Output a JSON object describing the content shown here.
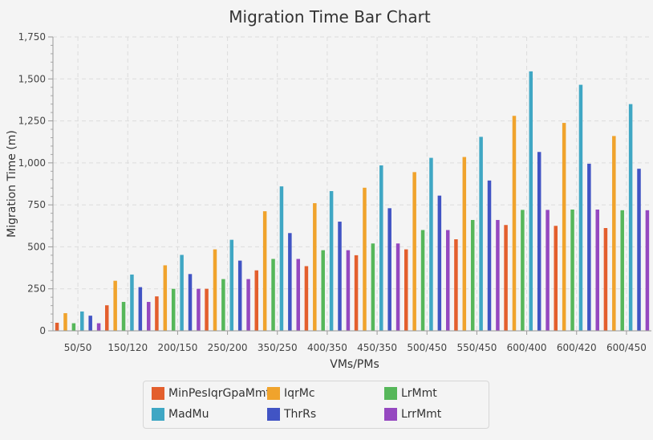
{
  "chart_data": {
    "type": "bar",
    "title": "Migration Time Bar Chart",
    "xlabel": "VMs/PMs",
    "ylabel": "Migration Time (m)",
    "ylim": [
      0,
      1750
    ],
    "yticks": [
      0,
      250,
      500,
      750,
      1000,
      1250,
      1500,
      1750
    ],
    "ytick_labels": [
      "0",
      "250",
      "500",
      "750",
      "1,000",
      "1,250",
      "1,500",
      "1,750"
    ],
    "grid": true,
    "legend_position": "bottom",
    "categories": [
      "50/50",
      "150/120",
      "200/150",
      "250/200",
      "350/250",
      "400/350",
      "450/350",
      "500/450",
      "550/450",
      "600/400",
      "600/420",
      "600/450"
    ],
    "series": [
      {
        "name": "MinPesIqrGpaMmt",
        "color": "#e35f2d",
        "values": [
          48,
          152,
          205,
          250,
          360,
          385,
          450,
          485,
          545,
          630,
          625,
          612
        ]
      },
      {
        "name": "IqrMc",
        "color": "#f0a32c",
        "values": [
          105,
          298,
          390,
          485,
          712,
          760,
          852,
          945,
          1035,
          1280,
          1238,
          1160
        ]
      },
      {
        "name": "LrMmt",
        "color": "#56b75a",
        "values": [
          45,
          172,
          250,
          308,
          428,
          480,
          520,
          600,
          660,
          720,
          722,
          718
        ]
      },
      {
        "name": "MadMu",
        "color": "#3fa7c4",
        "values": [
          115,
          335,
          452,
          542,
          860,
          832,
          985,
          1030,
          1155,
          1545,
          1465,
          1350
        ]
      },
      {
        "name": "ThrRs",
        "color": "#4154c4",
        "values": [
          90,
          260,
          338,
          418,
          582,
          650,
          730,
          805,
          895,
          1065,
          995,
          965
        ]
      },
      {
        "name": "LrrMmt",
        "color": "#9548c0",
        "values": [
          45,
          172,
          250,
          308,
          428,
          480,
          520,
          600,
          660,
          720,
          722,
          718
        ]
      }
    ]
  }
}
